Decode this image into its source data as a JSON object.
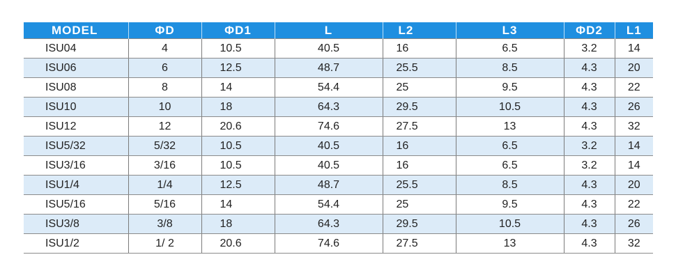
{
  "table": {
    "headers": [
      "MODEL",
      "ΦD",
      "ΦD1",
      "L",
      "L2",
      "L3",
      "ΦD2",
      "L1"
    ],
    "rows": [
      [
        "ISU04",
        "4",
        "10.5",
        "40.5",
        "16",
        "6.5",
        "3.2",
        "14"
      ],
      [
        "ISU06",
        "6",
        "12.5",
        "48.7",
        "25.5",
        "8.5",
        "4.3",
        "20"
      ],
      [
        "ISU08",
        "8",
        "14",
        "54.4",
        "25",
        "9.5",
        "4.3",
        "22"
      ],
      [
        "ISU10",
        "10",
        "18",
        "64.3",
        "29.5",
        "10.5",
        "4.3",
        "26"
      ],
      [
        "ISU12",
        "12",
        "20.6",
        "74.6",
        "27.5",
        "13",
        "4.3",
        "32"
      ],
      [
        "ISU5/32",
        "5/32",
        "10.5",
        "40.5",
        "16",
        "6.5",
        "3.2",
        "14"
      ],
      [
        "ISU3/16",
        "3/16",
        "10.5",
        "40.5",
        "16",
        "6.5",
        "3.2",
        "14"
      ],
      [
        "ISU1/4",
        "1/4",
        "12.5",
        "48.7",
        "25.5",
        "8.5",
        "4.3",
        "20"
      ],
      [
        "ISU5/16",
        "5/16",
        "14",
        "54.4",
        "25",
        "9.5",
        "4.3",
        "22"
      ],
      [
        "ISU3/8",
        "3/8",
        "18",
        "64.3",
        "29.5",
        "10.5",
        "4.3",
        "26"
      ],
      [
        "ISU1/2",
        "1/ 2",
        "20.6",
        "74.6",
        "27.5",
        "13",
        "4.3",
        "32"
      ]
    ]
  },
  "colors": {
    "header_background": "#1f8fe0",
    "header_text": "#ffffff",
    "stripe_row": "#dcebf8",
    "plain_row": "#ffffff"
  }
}
